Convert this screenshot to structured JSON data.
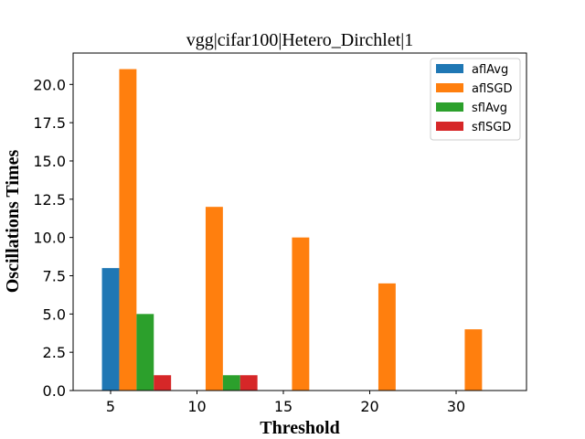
{
  "chart_data": {
    "type": "bar",
    "title": "vgg|cifar100|Hetero_Dirchlet|1",
    "xlabel": "Threshold",
    "ylabel": "Oscillations Times",
    "categories": [
      "5",
      "10",
      "15",
      "20",
      "30"
    ],
    "series": [
      {
        "name": "aflAvg",
        "color": "#1f77b4",
        "values": [
          8,
          0,
          0,
          0,
          0
        ]
      },
      {
        "name": "aflSGD",
        "color": "#ff7f0e",
        "values": [
          21,
          12,
          10,
          7,
          4
        ]
      },
      {
        "name": "sflAvg",
        "color": "#2ca02c",
        "values": [
          5,
          1,
          0,
          0,
          0
        ]
      },
      {
        "name": "sflSGD",
        "color": "#d62728",
        "values": [
          1,
          1,
          0,
          0,
          0
        ]
      }
    ],
    "ylim": [
      0,
      22.05
    ],
    "yticks": [
      "0.0",
      "2.5",
      "5.0",
      "7.5",
      "10.0",
      "12.5",
      "15.0",
      "17.5",
      "20.0"
    ],
    "grid": false,
    "legend_position": "top-right"
  }
}
